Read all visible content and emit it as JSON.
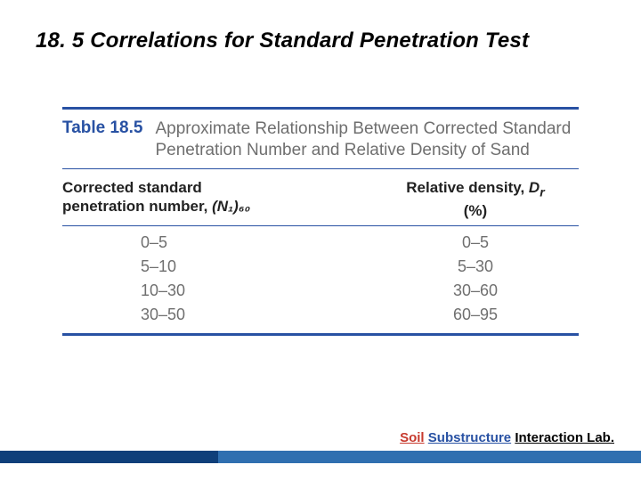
{
  "slide": {
    "heading": "18. 5 Correlations for Standard Penetration Test",
    "table": {
      "label": "Table 18.5",
      "caption": "Approximate Relationship Between Corrected Standard Penetration Number and Relative Density of Sand",
      "col_headers": {
        "left_line1": "Corrected standard",
        "left_line2_a": "penetration number, ",
        "left_line2_b": "(N₁)₆₀",
        "right_line1_a": "Relative density, ",
        "right_line1_b": "D",
        "right_line1_c": "r",
        "right_line2": "(%)"
      },
      "rows_left": [
        "0–5",
        "5–10",
        "10–30",
        "30–50"
      ],
      "rows_right": [
        "0–5",
        "5–30",
        "30–60",
        "60–95"
      ]
    },
    "footer": {
      "w1": "Soil",
      "w2": "Substructure",
      "w3": "Interaction Lab."
    },
    "colors": {
      "rule": "#2851a3",
      "caption_gray": "#6f6f6f",
      "footer_dark": "#0f3f7a",
      "footer_light": "#2f6fb0",
      "accent_red": "#c73a2e"
    }
  }
}
